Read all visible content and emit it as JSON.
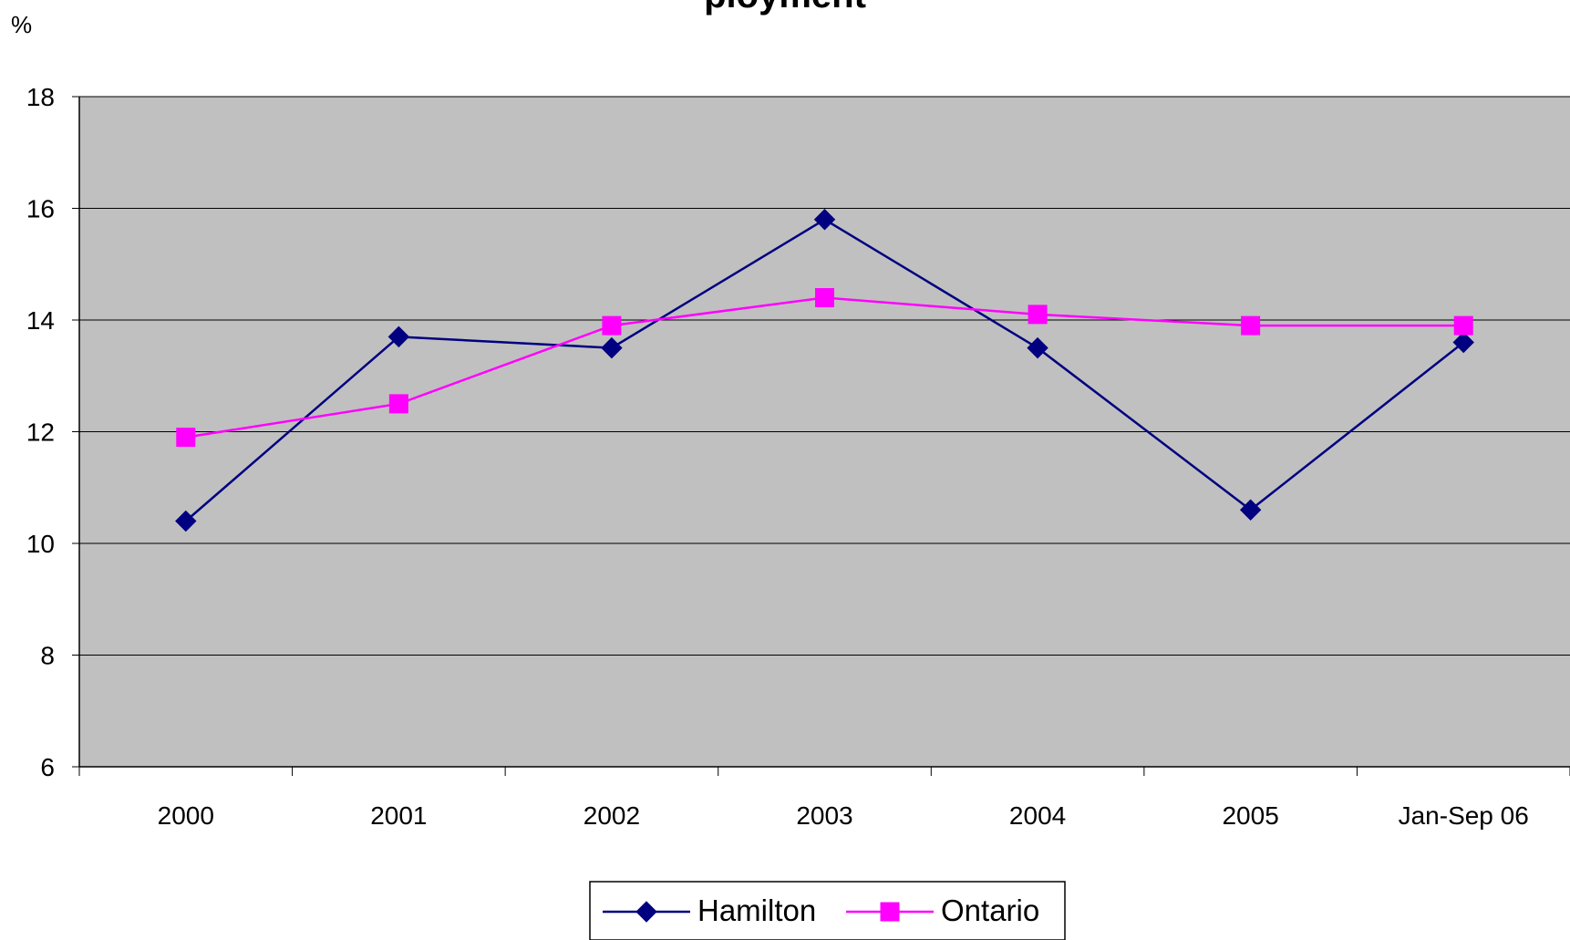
{
  "chart_data": {
    "type": "line",
    "title": "",
    "title_partial": "ployment",
    "ylabel": "%",
    "xlabel": "",
    "categories": [
      "2000",
      "2001",
      "2002",
      "2003",
      "2004",
      "2005",
      "Jan-Sep 06"
    ],
    "ylim": [
      6,
      18
    ],
    "yticks": [
      6,
      8,
      10,
      12,
      14,
      16,
      18
    ],
    "grid": "horizontal",
    "legend_position": "bottom",
    "plot_background": "#C0C0C0",
    "series": [
      {
        "name": "Hamilton",
        "values": [
          10.4,
          13.7,
          13.5,
          15.8,
          13.5,
          10.6,
          13.6
        ],
        "color": "#000080",
        "marker": "diamond"
      },
      {
        "name": "Ontario",
        "values": [
          11.9,
          12.5,
          13.9,
          14.4,
          14.1,
          13.9,
          13.9
        ],
        "color": "#FF00FF",
        "marker": "square"
      }
    ]
  }
}
